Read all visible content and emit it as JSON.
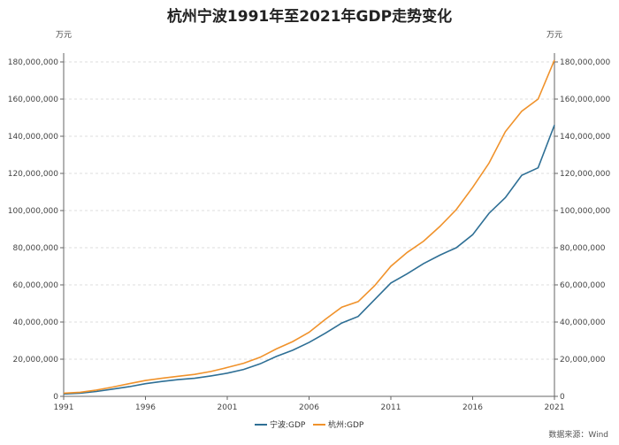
{
  "chart_title": "杭州宁波1991年至2021年GDP走势变化",
  "source": "数据来源：Wind",
  "chart_data": {
    "type": "line",
    "title": "杭州宁波1991年至2021年GDP走势变化",
    "y_unit_left": "万元",
    "y_unit_right": "万元",
    "x": [
      1991,
      1992,
      1993,
      1994,
      1995,
      1996,
      1997,
      1998,
      1999,
      2000,
      2001,
      2002,
      2003,
      2004,
      2005,
      2006,
      2007,
      2008,
      2009,
      2010,
      2011,
      2012,
      2013,
      2014,
      2015,
      2016,
      2017,
      2018,
      2019,
      2020,
      2021
    ],
    "x_ticks": [
      "1991",
      "1996",
      "2001",
      "2006",
      "2011",
      "2016",
      "2021"
    ],
    "ylim": [
      0,
      180000000
    ],
    "y_ticks": [
      "0",
      "20,000,000",
      "40,000,000",
      "60,000,000",
      "80,000,000",
      "100,000,000",
      "120,000,000",
      "140,000,000",
      "160,000,000",
      "180,000,000"
    ],
    "grid": true,
    "legend_position": "bottom",
    "series": [
      {
        "name": "宁波:GDP",
        "color": "#2e6f95",
        "values": [
          1300000,
          1700000,
          2600000,
          3900000,
          5200000,
          6800000,
          8000000,
          9000000,
          9700000,
          11000000,
          12500000,
          14500000,
          17500000,
          21500000,
          24800000,
          29000000,
          34000000,
          39500000,
          43000000,
          52000000,
          61000000,
          66000000,
          71500000,
          76000000,
          80000000,
          87000000,
          98500000,
          107000000,
          119000000,
          123000000,
          146000000
        ]
      },
      {
        "name": "杭州:GDP",
        "color": "#f0922b",
        "values": [
          1700000,
          2200000,
          3400000,
          5000000,
          6800000,
          8500000,
          9700000,
          10800000,
          11800000,
          13400000,
          15500000,
          17800000,
          21000000,
          25500000,
          29500000,
          34500000,
          41500000,
          48000000,
          51000000,
          59500000,
          70000000,
          77500000,
          83500000,
          91500000,
          100500000,
          112500000,
          125500000,
          142500000,
          153500000,
          160000000,
          181000000
        ]
      }
    ]
  }
}
